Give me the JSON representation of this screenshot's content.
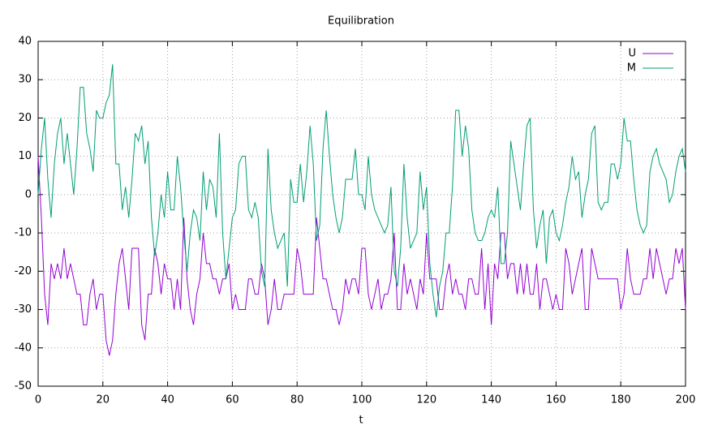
{
  "chart_data": {
    "type": "line",
    "title": "Equilibration",
    "x_label": "t",
    "x": [
      0,
      1,
      2,
      3,
      4,
      5,
      6,
      7,
      8,
      9,
      10,
      11,
      12,
      13,
      14,
      15,
      16,
      17,
      18,
      19,
      20,
      21,
      22,
      23,
      24,
      25,
      26,
      27,
      28,
      29,
      30,
      31,
      32,
      33,
      34,
      35,
      36,
      37,
      38,
      39,
      40,
      41,
      42,
      43,
      44,
      45,
      46,
      47,
      48,
      49,
      50,
      51,
      52,
      53,
      54,
      55,
      56,
      57,
      58,
      59,
      60,
      61,
      62,
      63,
      64,
      65,
      66,
      67,
      68,
      69,
      70,
      71,
      72,
      73,
      74,
      75,
      76,
      77,
      78,
      79,
      80,
      81,
      82,
      83,
      84,
      85,
      86,
      87,
      88,
      89,
      90,
      91,
      92,
      93,
      94,
      95,
      96,
      97,
      98,
      99,
      100,
      101,
      102,
      103,
      104,
      105,
      106,
      107,
      108,
      109,
      110,
      111,
      112,
      113,
      114,
      115,
      116,
      117,
      118,
      119,
      120,
      121,
      122,
      123,
      124,
      125,
      126,
      127,
      128,
      129,
      130,
      131,
      132,
      133,
      134,
      135,
      136,
      137,
      138,
      139,
      140,
      141,
      142,
      143,
      144,
      145,
      146,
      147,
      148,
      149,
      150,
      151,
      152,
      153,
      154,
      155,
      156,
      157,
      158,
      159,
      160,
      161,
      162,
      163,
      164,
      165,
      166,
      167,
      168,
      169,
      170,
      171,
      172,
      173,
      174,
      175,
      176,
      177,
      178,
      179,
      180,
      181,
      182,
      183,
      184,
      185,
      186,
      187,
      188,
      189,
      190,
      191,
      192,
      193,
      194,
      195,
      196,
      197,
      198,
      199,
      200
    ],
    "series": [
      {
        "name": "U",
        "color": "#9400d3",
        "values": [
          10,
          -6,
          -26,
          -34,
          -18,
          -22,
          -18,
          -22,
          -14,
          -22,
          -18,
          -22,
          -26,
          -26,
          -34,
          -34,
          -26,
          -22,
          -30,
          -26,
          -26,
          -38,
          -42,
          -38,
          -26,
          -18,
          -14,
          -22,
          -30,
          -14,
          -14,
          -14,
          -34,
          -38,
          -26,
          -26,
          -14,
          -18,
          -26,
          -18,
          -22,
          -22,
          -30,
          -22,
          -30,
          -6,
          -22,
          -30,
          -34,
          -26,
          -22,
          -10,
          -18,
          -18,
          -22,
          -22,
          -26,
          -22,
          -22,
          -18,
          -30,
          -26,
          -30,
          -30,
          -30,
          -22,
          -22,
          -26,
          -26,
          -18,
          -22,
          -34,
          -30,
          -22,
          -30,
          -30,
          -26,
          -26,
          -26,
          -26,
          -14,
          -18,
          -26,
          -26,
          -26,
          -26,
          -6,
          -14,
          -22,
          -22,
          -26,
          -30,
          -30,
          -34,
          -30,
          -22,
          -26,
          -22,
          -22,
          -26,
          -14,
          -14,
          -26,
          -30,
          -26,
          -22,
          -30,
          -26,
          -26,
          -22,
          -10,
          -30,
          -30,
          -18,
          -26,
          -22,
          -26,
          -30,
          -22,
          -26,
          -10,
          -22,
          -22,
          -22,
          -30,
          -30,
          -22,
          -18,
          -26,
          -22,
          -26,
          -26,
          -30,
          -22,
          -22,
          -26,
          -26,
          -14,
          -30,
          -18,
          -34,
          -18,
          -22,
          -10,
          -10,
          -22,
          -18,
          -18,
          -26,
          -18,
          -26,
          -18,
          -26,
          -26,
          -18,
          -30,
          -22,
          -22,
          -26,
          -30,
          -26,
          -30,
          -30,
          -14,
          -18,
          -26,
          -22,
          -18,
          -14,
          -30,
          -30,
          -14,
          -18,
          -22,
          -22,
          -22,
          -22,
          -22,
          -22,
          -22,
          -30,
          -26,
          -14,
          -22,
          -26,
          -26,
          -26,
          -22,
          -22,
          -14,
          -22,
          -14,
          -18,
          -22,
          -26,
          -22,
          -22,
          -14,
          -18,
          -14,
          -30
        ]
      },
      {
        "name": "M",
        "color": "#009e73",
        "values": [
          0,
          12,
          20,
          4,
          -6,
          8,
          16,
          20,
          8,
          16,
          8,
          0,
          12,
          28,
          28,
          16,
          12,
          6,
          22,
          20,
          20,
          24,
          26,
          34,
          8,
          8,
          -4,
          2,
          -6,
          4,
          16,
          14,
          18,
          8,
          14,
          -6,
          -16,
          -10,
          0,
          -6,
          6,
          -4,
          -4,
          10,
          2,
          -10,
          -20,
          -10,
          -4,
          -6,
          -12,
          6,
          -4,
          4,
          2,
          -6,
          16,
          -10,
          -22,
          -14,
          -6,
          -4,
          8,
          10,
          10,
          -4,
          -6,
          -2,
          -6,
          -20,
          -24,
          12,
          -4,
          -10,
          -14,
          -12,
          -10,
          -24,
          4,
          -2,
          -2,
          8,
          -2,
          6,
          18,
          8,
          -12,
          -8,
          12,
          22,
          10,
          0,
          -6,
          -10,
          -6,
          4,
          4,
          4,
          12,
          0,
          0,
          -4,
          10,
          0,
          -4,
          -6,
          -8,
          -10,
          -8,
          2,
          -20,
          -24,
          -14,
          8,
          -6,
          -14,
          -12,
          -10,
          6,
          -4,
          2,
          -18,
          -26,
          -32,
          -24,
          -20,
          -10,
          -10,
          2,
          22,
          22,
          10,
          18,
          12,
          -4,
          -10,
          -12,
          -12,
          -10,
          -6,
          -4,
          -6,
          2,
          -18,
          -18,
          -10,
          14,
          8,
          2,
          -4,
          8,
          18,
          20,
          -4,
          -14,
          -8,
          -4,
          -18,
          -6,
          -4,
          -10,
          -12,
          -8,
          -2,
          2,
          10,
          4,
          6,
          -6,
          0,
          4,
          16,
          18,
          -2,
          -4,
          -2,
          -2,
          8,
          8,
          4,
          8,
          20,
          14,
          14,
          4,
          -4,
          -8,
          -10,
          -8,
          6,
          10,
          12,
          8,
          6,
          4,
          -2,
          0,
          6,
          10,
          12,
          6
        ]
      }
    ],
    "xlim": [
      0,
      200
    ],
    "xticks": [
      0,
      20,
      40,
      60,
      80,
      100,
      120,
      140,
      160,
      180,
      200
    ],
    "ylim": [
      -50,
      40
    ],
    "yticks": [
      -50,
      -40,
      -30,
      -20,
      -10,
      0,
      10,
      20,
      30,
      40
    ],
    "grid": true,
    "legend": "top-right"
  }
}
